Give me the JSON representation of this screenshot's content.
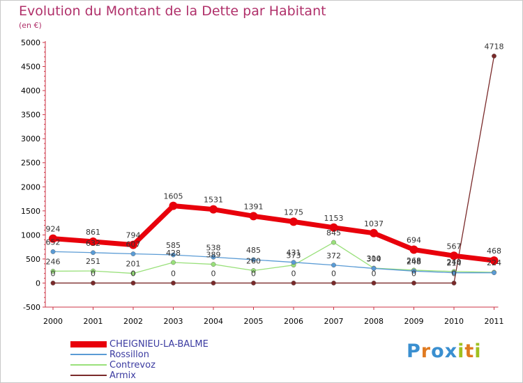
{
  "chart_data": {
    "type": "line",
    "title": "Evolution du Montant de la Dette par Habitant",
    "subtitle": "(en €)",
    "xlabel": "",
    "ylabel": "",
    "categories": [
      "2000",
      "2001",
      "2002",
      "2003",
      "2004",
      "2005",
      "2006",
      "2007",
      "2008",
      "2009",
      "2010",
      "2011"
    ],
    "ylim": [
      -500,
      5000
    ],
    "yticks": [
      "5000",
      "4500",
      "4000",
      "3500",
      "3000",
      "2500",
      "2000",
      "1500",
      "1000",
      "500",
      "0",
      "-500"
    ],
    "grid": false,
    "series": [
      {
        "name": "CHEIGNIEU-LA-BALME",
        "color": "#e8000b",
        "values": [
          924,
          861,
          794,
          1605,
          1531,
          1391,
          1275,
          1153,
          1037,
          694,
          567,
          468
        ],
        "labels": [
          "924",
          "861",
          "794",
          "1605",
          "1531",
          "1391",
          "1275",
          "1153",
          "1037",
          "694",
          "567",
          "468"
        ]
      },
      {
        "name": "Rossillon",
        "color": "#5a9bd5",
        "values": [
          652,
          632,
          607,
          585,
          538,
          485,
          431,
          372,
          304,
          248,
          214,
          214
        ],
        "labels": [
          "652",
          "632",
          "607",
          "585",
          "538",
          "485",
          "431",
          "372",
          "304",
          "248",
          "214",
          ""
        ]
      },
      {
        "name": "Contrevoz",
        "color": "#99e07a",
        "values": [
          246,
          251,
          201,
          428,
          389,
          260,
          373,
          845,
          310,
          268,
          240,
          224
        ],
        "labels": [
          "246",
          "251",
          "201",
          "428",
          "389",
          "260",
          "373",
          "845",
          "310",
          "268",
          "240",
          "224"
        ]
      },
      {
        "name": "Armix",
        "color": "#7a2a2a",
        "values": [
          0,
          0,
          0,
          0,
          0,
          0,
          0,
          0,
          0,
          0,
          0,
          4718
        ],
        "labels": [
          "0",
          "0",
          "0",
          "0",
          "0",
          "0",
          "0",
          "0",
          "0",
          "0",
          "0",
          "4718"
        ]
      }
    ]
  },
  "logo": {
    "letters": [
      "P",
      "r",
      "o",
      "x",
      "i",
      "t",
      "i"
    ],
    "colors": [
      "#3a8fd0",
      "#e07a20",
      "#3a8fd0",
      "#3a8fd0",
      "#a0c020",
      "#e07a20",
      "#a0c020"
    ]
  }
}
